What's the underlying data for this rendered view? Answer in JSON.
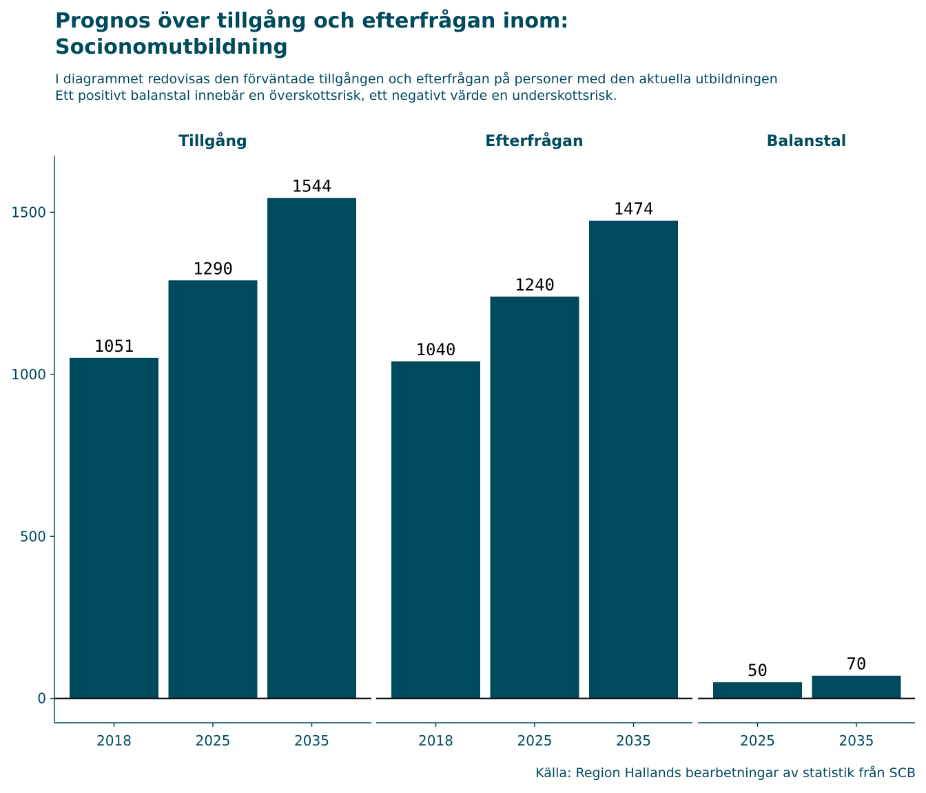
{
  "title_line1": "Prognos över tillgång och efterfrågan inom:",
  "title_line2": "Socionomutbildning",
  "subtitle_line1": "I diagrammet redovisas den förväntade tillgången och efterfrågan på personer med den aktuella utbildningen",
  "subtitle_line2": "Ett positivt balanstal innebär en överskottsrisk, ett negativt värde en underskottsrisk.",
  "caption": "Källa: Region Hallands bearbetningar av statistik från SCB",
  "colors": {
    "bar": "#004a5e",
    "text": "#004a5e",
    "axis": "#004a5e",
    "zero_line": "#000000"
  },
  "chart_data": {
    "type": "bar",
    "ylim": [
      -75,
      1675
    ],
    "yticks": [
      0,
      500,
      1000,
      1500
    ],
    "grid": false,
    "facets": [
      {
        "name": "Tillgång",
        "categories": [
          "2018",
          "2025",
          "2035"
        ],
        "values": [
          1051,
          1290,
          1544
        ]
      },
      {
        "name": "Efterfrågan",
        "categories": [
          "2018",
          "2025",
          "2035"
        ],
        "values": [
          1040,
          1240,
          1474
        ]
      },
      {
        "name": "Balanstal",
        "categories": [
          "2025",
          "2035"
        ],
        "values": [
          50,
          70
        ]
      }
    ]
  }
}
